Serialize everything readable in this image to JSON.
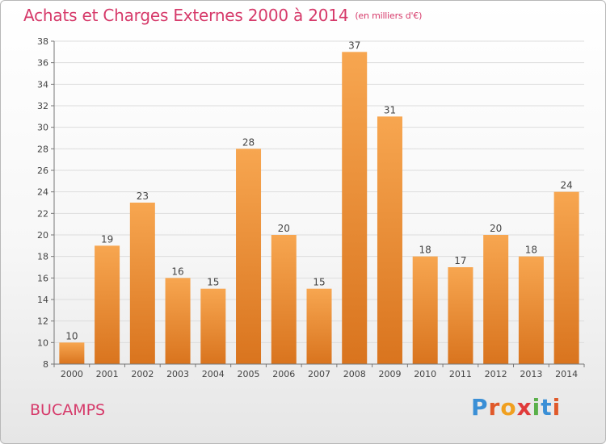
{
  "header": {
    "title": "Achats et Charges Externes 2000 à 2014",
    "subtitle": "(en milliers d'€)"
  },
  "footer": {
    "town": "BUCAMPS",
    "logo_text": "Proxiti"
  },
  "colors": {
    "bar_top": "#f7a650",
    "bar_bottom": "#d9741e",
    "title": "#d63a6a",
    "grid": "#dddddd"
  },
  "chart_data": {
    "type": "bar",
    "title": "Achats et Charges Externes 2000 à 2014",
    "subtitle": "(en milliers d'€)",
    "categories": [
      "2000",
      "2001",
      "2002",
      "2003",
      "2004",
      "2005",
      "2006",
      "2007",
      "2008",
      "2009",
      "2010",
      "2011",
      "2012",
      "2013",
      "2014"
    ],
    "values": [
      10,
      19,
      23,
      16,
      15,
      28,
      20,
      15,
      37,
      31,
      18,
      17,
      20,
      18,
      24
    ],
    "ylim": [
      8,
      38
    ],
    "yticks": [
      8,
      10,
      12,
      14,
      16,
      18,
      20,
      22,
      24,
      26,
      28,
      30,
      32,
      34,
      36,
      38
    ],
    "grid": true,
    "data_labels": true
  }
}
